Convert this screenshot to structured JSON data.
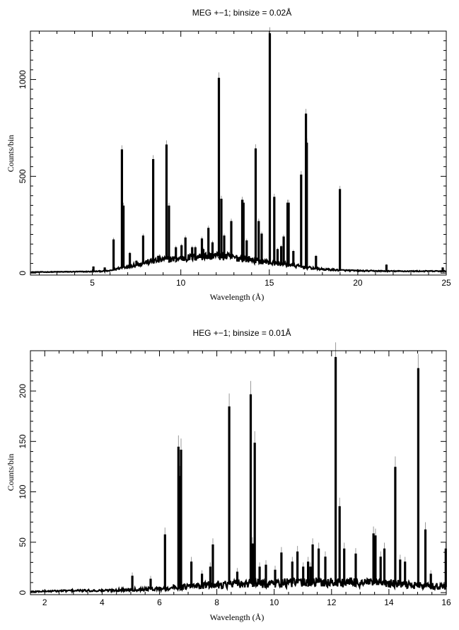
{
  "chart_data": [
    {
      "type": "line",
      "title": "MEG +−1; binsize = 0.02Å",
      "xlabel": "Wavelength (Å)",
      "ylabel": "Counts/bin",
      "xlim": [
        1.5,
        25
      ],
      "ylim": [
        -10,
        1250
      ],
      "xticks": [
        5,
        10,
        15,
        20,
        25
      ],
      "yticks": [
        0,
        500,
        1000
      ],
      "xtick_labels": [
        "5",
        "10",
        "15",
        "20",
        "25"
      ],
      "ytick_labels": [
        "0",
        "500",
        "1000"
      ],
      "grid": false,
      "baseline": [
        [
          1.5,
          5
        ],
        [
          5.0,
          8
        ],
        [
          6.0,
          12
        ],
        [
          6.5,
          25
        ],
        [
          7.0,
          35
        ],
        [
          8.0,
          55
        ],
        [
          9.0,
          70
        ],
        [
          10.0,
          75
        ],
        [
          11.0,
          85
        ],
        [
          12.0,
          90
        ],
        [
          13.0,
          80
        ],
        [
          14.0,
          70
        ],
        [
          15.0,
          55
        ],
        [
          16.0,
          45
        ],
        [
          17.0,
          30
        ],
        [
          18.0,
          20
        ],
        [
          19.0,
          15
        ],
        [
          20.0,
          12
        ],
        [
          22.0,
          10
        ],
        [
          25.0,
          10
        ]
      ],
      "lines": [
        {
          "x": 5.04,
          "y": 30
        },
        {
          "x": 5.68,
          "y": 25
        },
        {
          "x": 6.18,
          "y": 170
        },
        {
          "x": 6.65,
          "y": 635
        },
        {
          "x": 6.74,
          "y": 345
        },
        {
          "x": 7.1,
          "y": 100
        },
        {
          "x": 7.47,
          "y": 60
        },
        {
          "x": 7.85,
          "y": 190
        },
        {
          "x": 8.42,
          "y": 585
        },
        {
          "x": 8.7,
          "y": 85
        },
        {
          "x": 9.17,
          "y": 660
        },
        {
          "x": 9.31,
          "y": 345
        },
        {
          "x": 9.7,
          "y": 130
        },
        {
          "x": 10.02,
          "y": 140
        },
        {
          "x": 10.24,
          "y": 180
        },
        {
          "x": 10.62,
          "y": 130
        },
        {
          "x": 10.8,
          "y": 130
        },
        {
          "x": 11.17,
          "y": 175
        },
        {
          "x": 11.25,
          "y": 120
        },
        {
          "x": 11.54,
          "y": 230
        },
        {
          "x": 11.77,
          "y": 155
        },
        {
          "x": 12.13,
          "y": 1005
        },
        {
          "x": 12.27,
          "y": 380
        },
        {
          "x": 12.43,
          "y": 190
        },
        {
          "x": 12.83,
          "y": 265
        },
        {
          "x": 13.45,
          "y": 375
        },
        {
          "x": 13.52,
          "y": 360
        },
        {
          "x": 13.7,
          "y": 165
        },
        {
          "x": 14.21,
          "y": 640
        },
        {
          "x": 14.38,
          "y": 265
        },
        {
          "x": 14.55,
          "y": 200
        },
        {
          "x": 15.01,
          "y": 1235
        },
        {
          "x": 15.26,
          "y": 390
        },
        {
          "x": 15.45,
          "y": 120
        },
        {
          "x": 15.65,
          "y": 135
        },
        {
          "x": 15.79,
          "y": 185
        },
        {
          "x": 16.01,
          "y": 360
        },
        {
          "x": 16.07,
          "y": 360
        },
        {
          "x": 16.34,
          "y": 110
        },
        {
          "x": 16.78,
          "y": 505
        },
        {
          "x": 17.05,
          "y": 820
        },
        {
          "x": 17.1,
          "y": 670
        },
        {
          "x": 17.62,
          "y": 85
        },
        {
          "x": 18.97,
          "y": 430
        },
        {
          "x": 21.6,
          "y": 40
        },
        {
          "x": 24.78,
          "y": 25
        }
      ]
    },
    {
      "type": "line",
      "title": "HEG +−1; binsize = 0.01Å",
      "xlabel": "Wavelength (Å)",
      "ylabel": "Counts/bin",
      "xlim": [
        1.5,
        16
      ],
      "ylim": [
        -2,
        240
      ],
      "xticks": [
        2,
        4,
        6,
        8,
        10,
        12,
        14,
        16
      ],
      "yticks": [
        0,
        50,
        100,
        150,
        200
      ],
      "xtick_labels": [
        "2",
        "4",
        "6",
        "8",
        "10",
        "12",
        "14",
        "16"
      ],
      "ytick_labels": [
        "0",
        "50",
        "100",
        "150",
        "200"
      ],
      "grid": false,
      "baseline": [
        [
          1.5,
          1
        ],
        [
          3.0,
          2
        ],
        [
          4.0,
          2
        ],
        [
          5.0,
          3
        ],
        [
          6.0,
          4
        ],
        [
          7.0,
          6
        ],
        [
          8.0,
          8
        ],
        [
          9.0,
          9
        ],
        [
          10.0,
          9
        ],
        [
          11.0,
          10
        ],
        [
          12.0,
          10
        ],
        [
          13.0,
          10
        ],
        [
          14.0,
          9
        ],
        [
          15.0,
          7
        ],
        [
          16.0,
          6
        ]
      ],
      "lines": [
        {
          "x": 5.04,
          "y": 16
        },
        {
          "x": 5.68,
          "y": 13
        },
        {
          "x": 6.18,
          "y": 57
        },
        {
          "x": 6.65,
          "y": 144
        },
        {
          "x": 6.69,
          "y": 115
        },
        {
          "x": 6.74,
          "y": 141
        },
        {
          "x": 7.1,
          "y": 30
        },
        {
          "x": 7.47,
          "y": 18
        },
        {
          "x": 7.76,
          "y": 25
        },
        {
          "x": 7.85,
          "y": 47
        },
        {
          "x": 8.42,
          "y": 184
        },
        {
          "x": 8.7,
          "y": 20
        },
        {
          "x": 9.17,
          "y": 196
        },
        {
          "x": 9.23,
          "y": 48
        },
        {
          "x": 9.31,
          "y": 148
        },
        {
          "x": 9.48,
          "y": 25
        },
        {
          "x": 9.7,
          "y": 27
        },
        {
          "x": 10.02,
          "y": 22
        },
        {
          "x": 10.24,
          "y": 39
        },
        {
          "x": 10.62,
          "y": 30
        },
        {
          "x": 10.8,
          "y": 40
        },
        {
          "x": 11.0,
          "y": 25
        },
        {
          "x": 11.17,
          "y": 30
        },
        {
          "x": 11.25,
          "y": 25
        },
        {
          "x": 11.33,
          "y": 47
        },
        {
          "x": 11.54,
          "y": 43
        },
        {
          "x": 11.77,
          "y": 35
        },
        {
          "x": 12.13,
          "y": 233
        },
        {
          "x": 12.27,
          "y": 85
        },
        {
          "x": 12.43,
          "y": 43
        },
        {
          "x": 12.83,
          "y": 38
        },
        {
          "x": 13.45,
          "y": 58
        },
        {
          "x": 13.52,
          "y": 56
        },
        {
          "x": 13.7,
          "y": 35
        },
        {
          "x": 13.83,
          "y": 43
        },
        {
          "x": 14.21,
          "y": 124
        },
        {
          "x": 14.38,
          "y": 32
        },
        {
          "x": 14.55,
          "y": 30
        },
        {
          "x": 15.01,
          "y": 222
        },
        {
          "x": 15.26,
          "y": 62
        },
        {
          "x": 15.45,
          "y": 18
        },
        {
          "x": 15.97,
          "y": 43
        }
      ]
    }
  ]
}
